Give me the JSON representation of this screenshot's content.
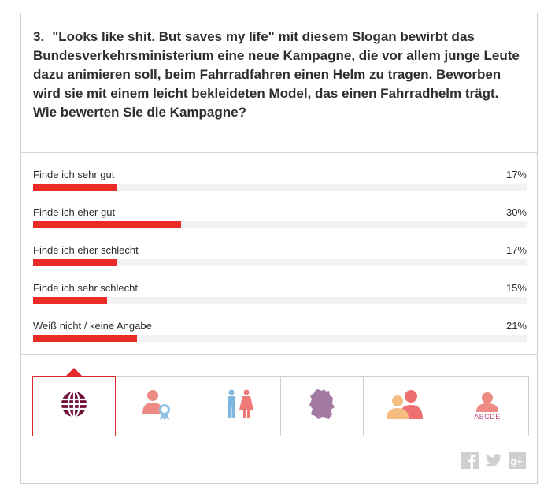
{
  "question": {
    "number": "3.",
    "text": "\"Looks like shit. But saves my life\" mit diesem Slogan bewirbt das Bundesverkehrsministerium eine neue Kampagne, die vor allem junge Leute dazu animieren soll, beim Fahrradfahren einen Helm zu tragen. Beworben wird sie mit einem leicht bekleideten Model, das einen Fahrradhelm trägt. Wie bewerten Sie die Kampagne?"
  },
  "answers": [
    {
      "label": "Finde ich sehr gut",
      "percent_text": "17%",
      "percent": 17
    },
    {
      "label": "Finde ich eher gut",
      "percent_text": "30%",
      "percent": 30
    },
    {
      "label": "Finde ich eher schlecht",
      "percent_text": "17%",
      "percent": 17
    },
    {
      "label": "Finde ich sehr schlecht",
      "percent_text": "15%",
      "percent": 15
    },
    {
      "label": "Weiß nicht / keine Angabe",
      "percent_text": "21%",
      "percent": 21
    }
  ],
  "colors": {
    "bar": "#ea2b26",
    "track": "#f2f2f2",
    "active_tab_border": "#d6272a"
  },
  "filter_tabs": [
    {
      "icon": "globe-icon",
      "active": true
    },
    {
      "icon": "person-award-icon",
      "active": false
    },
    {
      "icon": "man-woman-icon",
      "active": false
    },
    {
      "icon": "germany-map-icon",
      "active": false
    },
    {
      "icon": "two-persons-icon",
      "active": false
    },
    {
      "icon": "person-education-icon",
      "label": "ABCDE",
      "active": false
    }
  ],
  "social": [
    "facebook-icon",
    "twitter-icon",
    "google-plus-icon"
  ]
}
